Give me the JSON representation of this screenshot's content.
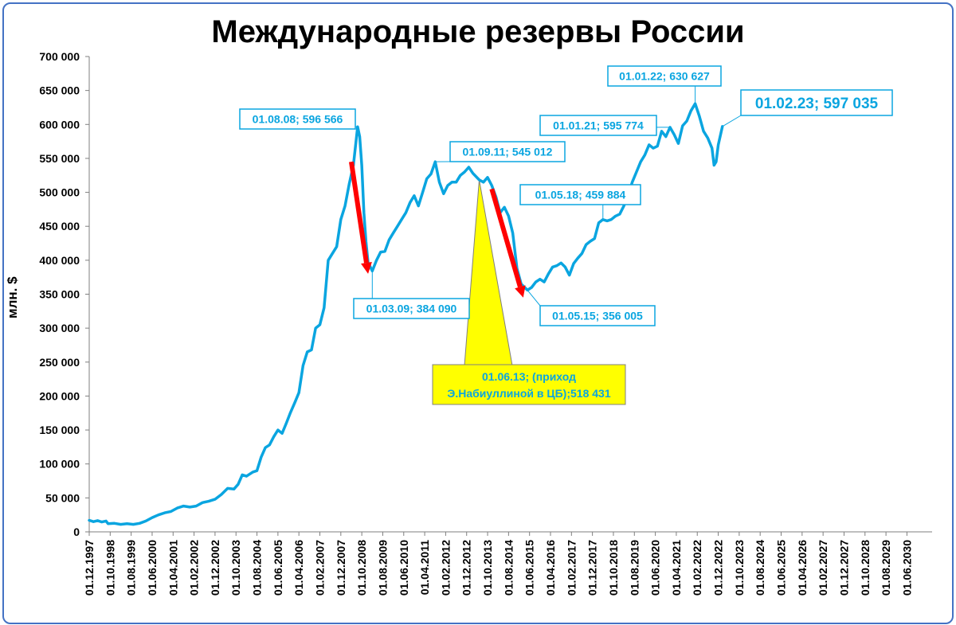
{
  "chart_data": {
    "type": "line",
    "title": "Международные резервы России",
    "ylabel": "млн. $",
    "xlabel": "",
    "ylim": [
      0,
      700000
    ],
    "yticks": [
      "0",
      "50 000",
      "100 000",
      "150 000",
      "200 000",
      "250 000",
      "300 000",
      "350 000",
      "400 000",
      "450 000",
      "500 000",
      "550 000",
      "600 000",
      "650 000",
      "700 000"
    ],
    "xlim": [
      "1997-12-01",
      "2031-06-01"
    ],
    "xticks": [
      "01.12.1997",
      "01.10.1998",
      "01.08.1999",
      "01.06.2000",
      "01.04.2001",
      "01.02.2002",
      "01.12.2002",
      "01.10.2003",
      "01.08.2004",
      "01.06.2005",
      "01.04.2006",
      "01.02.2007",
      "01.12.2007",
      "01.10.2008",
      "01.08.2009",
      "01.06.2010",
      "01.04.2011",
      "01.02.2012",
      "01.12.2012",
      "01.10.2013",
      "01.08.2014",
      "01.06.2015",
      "01.04.2016",
      "01.02.2017",
      "01.12.2017",
      "01.10.2018",
      "01.08.2019",
      "01.06.2020",
      "01.04.2021",
      "01.02.2022",
      "01.12.2022",
      "01.10.2023",
      "01.08.2024",
      "01.06.2025",
      "01.04.2026",
      "01.02.2027",
      "01.12.2027",
      "01.10.2028",
      "01.08.2029",
      "01.06.2030"
    ],
    "grid": false,
    "series": [
      {
        "color": "#0aa5e0",
        "points": [
          [
            "1997-12-01",
            17000
          ],
          [
            "1998-02-01",
            15000
          ],
          [
            "1998-04-01",
            16500
          ],
          [
            "1998-06-01",
            14500
          ],
          [
            "1998-08-01",
            16000
          ],
          [
            "1998-09-01",
            12000
          ],
          [
            "1998-12-01",
            12500
          ],
          [
            "1999-03-01",
            11000
          ],
          [
            "1999-06-01",
            12000
          ],
          [
            "1999-09-01",
            11000
          ],
          [
            "1999-12-01",
            12500
          ],
          [
            "2000-03-01",
            16000
          ],
          [
            "2000-06-01",
            21000
          ],
          [
            "2000-09-01",
            25000
          ],
          [
            "2000-12-01",
            28000
          ],
          [
            "2001-03-01",
            30000
          ],
          [
            "2001-06-01",
            35000
          ],
          [
            "2001-09-01",
            38000
          ],
          [
            "2001-12-01",
            36500
          ],
          [
            "2002-03-01",
            38000
          ],
          [
            "2002-06-01",
            43000
          ],
          [
            "2002-09-01",
            45000
          ],
          [
            "2002-12-01",
            48000
          ],
          [
            "2003-03-01",
            55000
          ],
          [
            "2003-06-01",
            64000
          ],
          [
            "2003-09-01",
            63000
          ],
          [
            "2003-11-01",
            70000
          ],
          [
            "2004-01-01",
            84000
          ],
          [
            "2004-03-01",
            82000
          ],
          [
            "2004-06-01",
            88000
          ],
          [
            "2004-08-01",
            90000
          ],
          [
            "2004-10-01",
            110000
          ],
          [
            "2004-12-01",
            124000
          ],
          [
            "2005-02-01",
            128000
          ],
          [
            "2005-04-01",
            140000
          ],
          [
            "2005-06-01",
            150000
          ],
          [
            "2005-08-01",
            145000
          ],
          [
            "2005-10-01",
            160000
          ],
          [
            "2005-12-01",
            176000
          ],
          [
            "2006-02-01",
            190000
          ],
          [
            "2006-04-01",
            205000
          ],
          [
            "2006-06-01",
            245000
          ],
          [
            "2006-08-01",
            265000
          ],
          [
            "2006-10-01",
            268000
          ],
          [
            "2006-12-01",
            300000
          ],
          [
            "2007-02-01",
            305000
          ],
          [
            "2007-04-01",
            330000
          ],
          [
            "2007-06-01",
            400000
          ],
          [
            "2007-08-01",
            410000
          ],
          [
            "2007-10-01",
            420000
          ],
          [
            "2007-12-01",
            460000
          ],
          [
            "2008-02-01",
            480000
          ],
          [
            "2008-04-01",
            512000
          ],
          [
            "2008-06-01",
            540000
          ],
          [
            "2008-08-01",
            596566
          ],
          [
            "2008-09-01",
            582000
          ],
          [
            "2008-10-01",
            540000
          ],
          [
            "2008-11-01",
            470000
          ],
          [
            "2008-12-01",
            427000
          ],
          [
            "2009-01-01",
            397000
          ],
          [
            "2009-03-01",
            384090
          ],
          [
            "2009-05-01",
            400000
          ],
          [
            "2009-07-01",
            412000
          ],
          [
            "2009-09-01",
            413000
          ],
          [
            "2009-11-01",
            430000
          ],
          [
            "2010-01-01",
            440000
          ],
          [
            "2010-03-01",
            450000
          ],
          [
            "2010-05-01",
            460000
          ],
          [
            "2010-07-01",
            470000
          ],
          [
            "2010-09-01",
            485000
          ],
          [
            "2010-11-01",
            495000
          ],
          [
            "2011-01-01",
            480000
          ],
          [
            "2011-03-01",
            500000
          ],
          [
            "2011-05-01",
            520000
          ],
          [
            "2011-07-01",
            527000
          ],
          [
            "2011-09-01",
            545012
          ],
          [
            "2011-11-01",
            515000
          ],
          [
            "2012-01-01",
            498000
          ],
          [
            "2012-03-01",
            510000
          ],
          [
            "2012-05-01",
            515000
          ],
          [
            "2012-07-01",
            515000
          ],
          [
            "2012-09-01",
            525000
          ],
          [
            "2012-11-01",
            530000
          ],
          [
            "2013-01-01",
            537000
          ],
          [
            "2013-03-01",
            528000
          ],
          [
            "2013-06-01",
            518431
          ],
          [
            "2013-08-01",
            515000
          ],
          [
            "2013-10-01",
            522000
          ],
          [
            "2013-12-01",
            510000
          ],
          [
            "2014-02-01",
            493000
          ],
          [
            "2014-04-01",
            470000
          ],
          [
            "2014-06-01",
            478000
          ],
          [
            "2014-08-01",
            465000
          ],
          [
            "2014-10-01",
            440000
          ],
          [
            "2014-12-01",
            388000
          ],
          [
            "2015-02-01",
            365000
          ],
          [
            "2015-05-01",
            356005
          ],
          [
            "2015-07-01",
            360000
          ],
          [
            "2015-09-01",
            368000
          ],
          [
            "2015-11-01",
            372000
          ],
          [
            "2016-01-01",
            368000
          ],
          [
            "2016-03-01",
            380000
          ],
          [
            "2016-05-01",
            390000
          ],
          [
            "2016-07-01",
            392000
          ],
          [
            "2016-09-01",
            396000
          ],
          [
            "2016-11-01",
            390000
          ],
          [
            "2017-01-01",
            378000
          ],
          [
            "2017-03-01",
            395000
          ],
          [
            "2017-05-01",
            403000
          ],
          [
            "2017-07-01",
            410000
          ],
          [
            "2017-09-01",
            423000
          ],
          [
            "2017-11-01",
            428000
          ],
          [
            "2018-01-01",
            432000
          ],
          [
            "2018-03-01",
            455000
          ],
          [
            "2018-05-01",
            459884
          ],
          [
            "2018-07-01",
            458000
          ],
          [
            "2018-09-01",
            460000
          ],
          [
            "2018-11-01",
            465000
          ],
          [
            "2019-01-01",
            468000
          ],
          [
            "2019-03-01",
            480000
          ],
          [
            "2019-05-01",
            495000
          ],
          [
            "2019-07-01",
            515000
          ],
          [
            "2019-09-01",
            530000
          ],
          [
            "2019-11-01",
            545000
          ],
          [
            "2020-01-01",
            555000
          ],
          [
            "2020-03-01",
            570000
          ],
          [
            "2020-05-01",
            565000
          ],
          [
            "2020-07-01",
            568000
          ],
          [
            "2020-09-01",
            590000
          ],
          [
            "2020-11-01",
            582000
          ],
          [
            "2021-01-01",
            595774
          ],
          [
            "2021-03-01",
            585000
          ],
          [
            "2021-05-01",
            572000
          ],
          [
            "2021-07-01",
            598000
          ],
          [
            "2021-09-01",
            605000
          ],
          [
            "2021-11-01",
            620000
          ],
          [
            "2022-01-01",
            630627
          ],
          [
            "2022-03-01",
            612000
          ],
          [
            "2022-05-01",
            590000
          ],
          [
            "2022-07-01",
            580000
          ],
          [
            "2022-09-01",
            565000
          ],
          [
            "2022-10-01",
            540000
          ],
          [
            "2022-11-01",
            545000
          ],
          [
            "2022-12-01",
            570000
          ],
          [
            "2023-02-01",
            597035
          ]
        ]
      }
    ],
    "annotations": [
      {
        "text": "01.08.08; 596 566",
        "date": "2008-08-01",
        "value": 596566
      },
      {
        "text": "01.03.09; 384 090",
        "date": "2009-03-01",
        "value": 384090
      },
      {
        "text": "01.09.11; 545 012",
        "date": "2011-09-01",
        "value": 545012
      },
      {
        "text": "01.05.15; 356 005",
        "date": "2015-05-01",
        "value": 356005
      },
      {
        "text": "01.05.18; 459 884",
        "date": "2018-05-01",
        "value": 459884
      },
      {
        "text": "01.01.21; 595 774",
        "date": "2021-01-01",
        "value": 595774
      },
      {
        "text": "01.01.22; 630 627",
        "date": "2022-01-01",
        "value": 630627
      },
      {
        "text": "01.02.23; 597 035",
        "date": "2023-02-01",
        "value": 597035
      }
    ],
    "callout": {
      "lines": [
        "01.06.13; (приход",
        "Э.Набиуллиной в ЦБ);518 431"
      ],
      "date": "2013-06-01",
      "value": 518431,
      "fill": "#ffff00"
    },
    "arrows": [
      {
        "from": [
          "2008-05-01",
          545000
        ],
        "to": [
          "2009-01-01",
          380000
        ],
        "color": "#ff0000"
      },
      {
        "from": [
          "2013-12-01",
          505000
        ],
        "to": [
          "2015-03-01",
          345000
        ],
        "color": "#ff0000"
      }
    ]
  }
}
